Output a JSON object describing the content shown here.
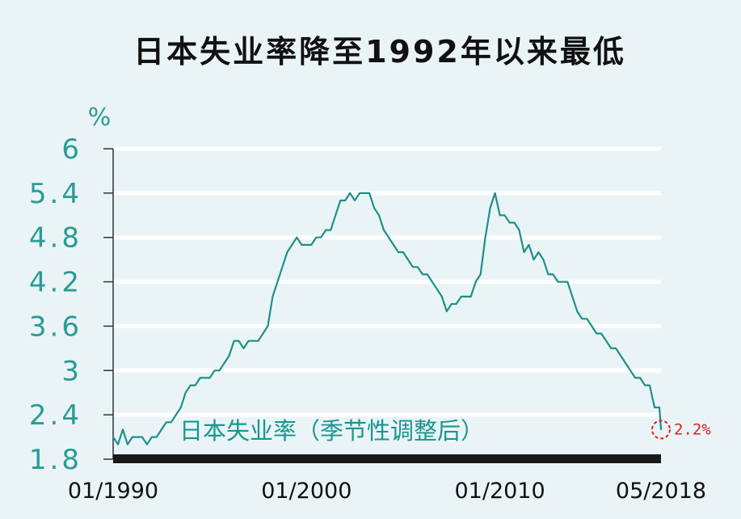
{
  "colors": {
    "background": "#eaf4f6",
    "line": "#1f8f8a",
    "axis_label": "#2a9c96",
    "baseline": "#1a1a1a",
    "gridline": "#ffffff",
    "annotation": "#e02020"
  },
  "chart_data": {
    "type": "line",
    "title": "日本失业率降至1992年以来最低",
    "ylabel": "%",
    "ylim": [
      1.8,
      6.0
    ],
    "yticks": [
      "1.8",
      "2.4",
      "3",
      "3.6",
      "4.2",
      "4.8",
      "5.4",
      "6"
    ],
    "xticks": [
      "01/1990",
      "01/2000",
      "01/2010",
      "05/2018"
    ],
    "grid": true,
    "series": [
      {
        "name": "日本失业率（季节性调整后）",
        "x": [
          "1990-01",
          "1990-04",
          "1990-07",
          "1990-10",
          "1991-01",
          "1991-04",
          "1991-07",
          "1991-10",
          "1992-01",
          "1992-04",
          "1992-07",
          "1992-10",
          "1993-01",
          "1993-04",
          "1993-07",
          "1993-10",
          "1994-01",
          "1994-04",
          "1994-07",
          "1994-10",
          "1995-01",
          "1995-04",
          "1995-07",
          "1995-10",
          "1996-01",
          "1996-04",
          "1996-07",
          "1996-10",
          "1997-01",
          "1997-04",
          "1997-07",
          "1997-10",
          "1998-01",
          "1998-04",
          "1998-07",
          "1998-10",
          "1999-01",
          "1999-04",
          "1999-07",
          "1999-10",
          "2000-01",
          "2000-04",
          "2000-07",
          "2000-10",
          "2001-01",
          "2001-04",
          "2001-07",
          "2001-10",
          "2002-01",
          "2002-04",
          "2002-07",
          "2002-10",
          "2003-01",
          "2003-04",
          "2003-07",
          "2003-10",
          "2004-01",
          "2004-04",
          "2004-07",
          "2004-10",
          "2005-01",
          "2005-04",
          "2005-07",
          "2005-10",
          "2006-01",
          "2006-04",
          "2006-07",
          "2006-10",
          "2007-01",
          "2007-04",
          "2007-07",
          "2007-10",
          "2008-01",
          "2008-04",
          "2008-07",
          "2008-10",
          "2009-01",
          "2009-04",
          "2009-07",
          "2009-10",
          "2010-01",
          "2010-04",
          "2010-07",
          "2010-10",
          "2011-01",
          "2011-04",
          "2011-07",
          "2011-10",
          "2012-01",
          "2012-04",
          "2012-07",
          "2012-10",
          "2013-01",
          "2013-04",
          "2013-07",
          "2013-10",
          "2014-01",
          "2014-04",
          "2014-07",
          "2014-10",
          "2015-01",
          "2015-04",
          "2015-07",
          "2015-10",
          "2016-01",
          "2016-04",
          "2016-07",
          "2016-10",
          "2017-01",
          "2017-04",
          "2017-07",
          "2017-10",
          "2018-01",
          "2018-04",
          "2018-05"
        ],
        "values": [
          2.1,
          2.0,
          2.2,
          2.0,
          2.1,
          2.1,
          2.1,
          2.0,
          2.1,
          2.1,
          2.2,
          2.3,
          2.3,
          2.4,
          2.5,
          2.7,
          2.8,
          2.8,
          2.9,
          2.9,
          2.9,
          3.0,
          3.0,
          3.1,
          3.2,
          3.4,
          3.4,
          3.3,
          3.4,
          3.4,
          3.4,
          3.5,
          3.6,
          4.0,
          4.2,
          4.4,
          4.6,
          4.7,
          4.8,
          4.7,
          4.7,
          4.7,
          4.8,
          4.8,
          4.9,
          4.9,
          5.1,
          5.3,
          5.3,
          5.4,
          5.3,
          5.4,
          5.4,
          5.4,
          5.2,
          5.1,
          4.9,
          4.8,
          4.7,
          4.6,
          4.6,
          4.5,
          4.4,
          4.4,
          4.3,
          4.3,
          4.2,
          4.1,
          4.0,
          3.8,
          3.9,
          3.9,
          4.0,
          4.0,
          4.0,
          4.2,
          4.3,
          4.8,
          5.2,
          5.4,
          5.1,
          5.1,
          5.0,
          5.0,
          4.9,
          4.6,
          4.7,
          4.5,
          4.6,
          4.5,
          4.3,
          4.3,
          4.2,
          4.2,
          4.2,
          4.0,
          3.8,
          3.7,
          3.7,
          3.6,
          3.5,
          3.5,
          3.4,
          3.3,
          3.3,
          3.2,
          3.1,
          3.0,
          2.9,
          2.9,
          2.8,
          2.8,
          2.5,
          2.5,
          2.2
        ]
      }
    ],
    "series_label": "日本失业率（季节性调整后）",
    "annotation": {
      "text": "2.2%",
      "x": "2018-05",
      "value": 2.2
    }
  }
}
